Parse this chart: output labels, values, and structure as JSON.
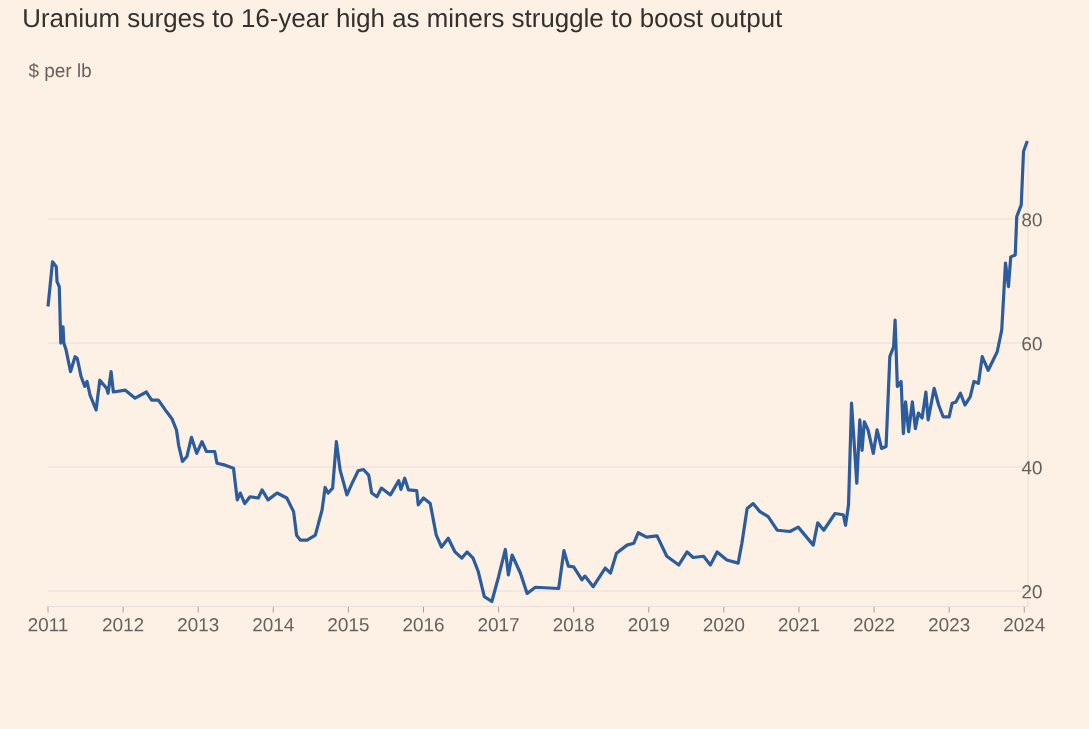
{
  "chart_data": {
    "type": "line",
    "title": "Uranium surges to 16-year high as miners struggle to boost output",
    "ylabel": "$ per lb",
    "x": [
      2011.0,
      2011.06,
      2011.11,
      2011.12,
      2011.15,
      2011.17,
      2011.2,
      2011.21,
      2011.24,
      2011.3,
      2011.36,
      2011.39,
      2011.44,
      2011.49,
      2011.52,
      2011.56,
      2011.64,
      2011.69,
      2011.78,
      2011.8,
      2011.84,
      2011.87,
      2012.03,
      2012.16,
      2012.31,
      2012.38,
      2012.47,
      2012.58,
      2012.65,
      2012.71,
      2012.74,
      2012.79,
      2012.85,
      2012.91,
      2012.98,
      2013.05,
      2013.11,
      2013.22,
      2013.25,
      2013.36,
      2013.47,
      2013.52,
      2013.56,
      2013.62,
      2013.69,
      2013.8,
      2013.85,
      2013.93,
      2014.05,
      2014.18,
      2014.27,
      2014.31,
      2014.36,
      2014.45,
      2014.56,
      2014.65,
      2014.69,
      2014.73,
      2014.79,
      2014.84,
      2014.89,
      2014.98,
      2015.05,
      2015.13,
      2015.2,
      2015.27,
      2015.31,
      2015.38,
      2015.44,
      2015.56,
      2015.67,
      2015.7,
      2015.75,
      2015.8,
      2015.91,
      2015.93,
      2016.0,
      2016.09,
      2016.17,
      2016.24,
      2016.33,
      2016.42,
      2016.51,
      2016.58,
      2016.66,
      2016.73,
      2016.81,
      2016.91,
      2017.0,
      2017.09,
      2017.13,
      2017.18,
      2017.29,
      2017.38,
      2017.49,
      2017.8,
      2017.87,
      2017.93,
      2018.0,
      2018.11,
      2018.15,
      2018.26,
      2018.42,
      2018.49,
      2018.57,
      2018.71,
      2018.8,
      2018.86,
      2018.97,
      2019.11,
      2019.24,
      2019.4,
      2019.51,
      2019.59,
      2019.73,
      2019.82,
      2019.91,
      2020.04,
      2020.19,
      2020.24,
      2020.31,
      2020.39,
      2020.48,
      2020.59,
      2020.71,
      2020.88,
      2020.99,
      2021.19,
      2021.25,
      2021.33,
      2021.48,
      2021.59,
      2021.62,
      2021.66,
      2021.7,
      2021.77,
      2021.81,
      2021.84,
      2021.87,
      2021.92,
      2021.99,
      2022.04,
      2022.1,
      2022.16,
      2022.21,
      2022.26,
      2022.28,
      2022.31,
      2022.36,
      2022.39,
      2022.42,
      2022.46,
      2022.51,
      2022.55,
      2022.59,
      2022.64,
      2022.69,
      2022.72,
      2022.8,
      2022.86,
      2022.92,
      2023.0,
      2023.04,
      2023.09,
      2023.15,
      2023.21,
      2023.28,
      2023.33,
      2023.39,
      2023.44,
      2023.52,
      2023.64,
      2023.7,
      2023.75,
      2023.79,
      2023.82,
      2023.88,
      2023.9,
      2023.96,
      2023.99,
      2024.04
    ],
    "series": [
      {
        "color": "#2c5b9e",
        "values": [
          65.9,
          73.1,
          72.3,
          69.9,
          69.1,
          60.0,
          62.6,
          60.0,
          58.9,
          55.4,
          57.8,
          57.5,
          54.6,
          53.0,
          53.8,
          51.6,
          49.2,
          54.0,
          52.7,
          51.9,
          55.4,
          52.1,
          52.4,
          51.1,
          52.1,
          50.8,
          50.8,
          48.9,
          47.8,
          46.0,
          43.5,
          40.9,
          41.7,
          44.8,
          42.2,
          44.1,
          42.5,
          42.5,
          40.6,
          40.3,
          39.8,
          34.7,
          35.8,
          34.1,
          35.2,
          35.0,
          36.3,
          34.7,
          35.8,
          35.0,
          32.8,
          29.0,
          28.2,
          28.2,
          29.0,
          33.1,
          36.7,
          35.8,
          36.6,
          44.1,
          39.5,
          35.5,
          37.4,
          39.4,
          39.6,
          38.7,
          35.8,
          35.2,
          36.6,
          35.5,
          37.8,
          36.4,
          38.2,
          36.3,
          36.2,
          33.9,
          35.0,
          34.1,
          29.0,
          27.1,
          28.5,
          26.3,
          25.3,
          26.3,
          25.3,
          23.1,
          19.1,
          18.3,
          22.3,
          26.7,
          22.6,
          25.8,
          22.9,
          19.6,
          20.6,
          20.4,
          26.5,
          24.0,
          23.9,
          21.8,
          22.4,
          20.7,
          23.7,
          22.9,
          26.1,
          27.4,
          27.7,
          29.4,
          28.7,
          28.9,
          25.6,
          24.2,
          26.3,
          25.4,
          25.6,
          24.2,
          26.3,
          25.0,
          24.5,
          27.7,
          33.3,
          34.1,
          32.8,
          32.0,
          29.8,
          29.6,
          30.3,
          27.4,
          31.0,
          29.8,
          32.5,
          32.3,
          30.6,
          33.9,
          50.3,
          37.4,
          47.6,
          42.7,
          47.3,
          46.0,
          42.2,
          46.0,
          43.0,
          43.3,
          57.8,
          59.4,
          63.7,
          53.0,
          53.8,
          45.4,
          50.5,
          45.7,
          50.5,
          46.2,
          48.7,
          47.9,
          52.1,
          47.6,
          52.7,
          50.0,
          48.1,
          48.1,
          50.3,
          50.5,
          51.9,
          50.0,
          51.3,
          53.8,
          53.5,
          57.8,
          55.6,
          58.6,
          62.1,
          72.9,
          69.1,
          73.9,
          74.2,
          80.4,
          82.3,
          90.9,
          92.6
        ]
      }
    ],
    "xlim": [
      2011,
      2024.05
    ],
    "ylim": [
      17.5,
      93
    ],
    "xticks": [
      2011,
      2012,
      2013,
      2014,
      2015,
      2016,
      2017,
      2018,
      2019,
      2020,
      2021,
      2022,
      2023,
      2024
    ],
    "yticks": [
      20,
      40,
      60,
      80
    ],
    "grid": "y"
  }
}
